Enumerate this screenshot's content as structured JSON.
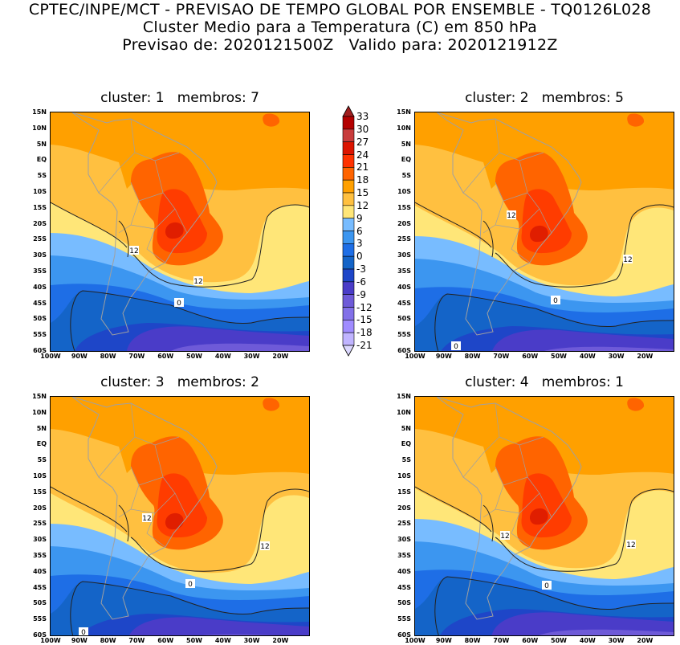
{
  "header": {
    "line1": "CPTEC/INPE/MCT - PREVISAO DE TEMPO GLOBAL POR ENSEMBLE - TQ0126L028",
    "line2": "Cluster Medio para a Temperatura (C) em 850 hPa",
    "line3": "Previsao de: 2020121500Z   Valido para: 2020121912Z"
  },
  "panels": [
    {
      "title": "cluster: 1   membros: 7",
      "contour_labels": [
        "12",
        "12",
        "0"
      ]
    },
    {
      "title": "cluster: 2   membros: 5",
      "contour_labels": [
        "12",
        "12",
        "0",
        "0"
      ]
    },
    {
      "title": "cluster: 3   membros: 2",
      "contour_labels": [
        "12",
        "12",
        "0",
        "0"
      ]
    },
    {
      "title": "cluster: 4   membros: 1",
      "contour_labels": [
        "12",
        "12",
        "0"
      ]
    }
  ],
  "axes": {
    "lat_labels": [
      "15N",
      "10N",
      "5N",
      "EQ",
      "5S",
      "10S",
      "15S",
      "20S",
      "25S",
      "30S",
      "35S",
      "40S",
      "45S",
      "50S",
      "55S",
      "60S"
    ],
    "lon_labels": [
      "100W",
      "90W",
      "80W",
      "70W",
      "60W",
      "50W",
      "40W",
      "30W",
      "20W"
    ]
  },
  "colorbar": {
    "labels": [
      "33",
      "30",
      "27",
      "24",
      "21",
      "18",
      "15",
      "12",
      "9",
      "6",
      "3",
      "0",
      "-3",
      "-6",
      "-9",
      "-12",
      "-15",
      "-18",
      "-21"
    ],
    "colors": [
      "#a01e1e",
      "#b40000",
      "#c83c3c",
      "#dc1400",
      "#ff3200",
      "#ff6400",
      "#ffa000",
      "#ffc040",
      "#ffe678",
      "#78bcff",
      "#3c96f0",
      "#1e6ee6",
      "#1464c8",
      "#1e46c8",
      "#4a3cc8",
      "#6e5ad8",
      "#8270e8",
      "#a08cff",
      "#c0b4ff",
      "#dcd8ff"
    ]
  }
}
